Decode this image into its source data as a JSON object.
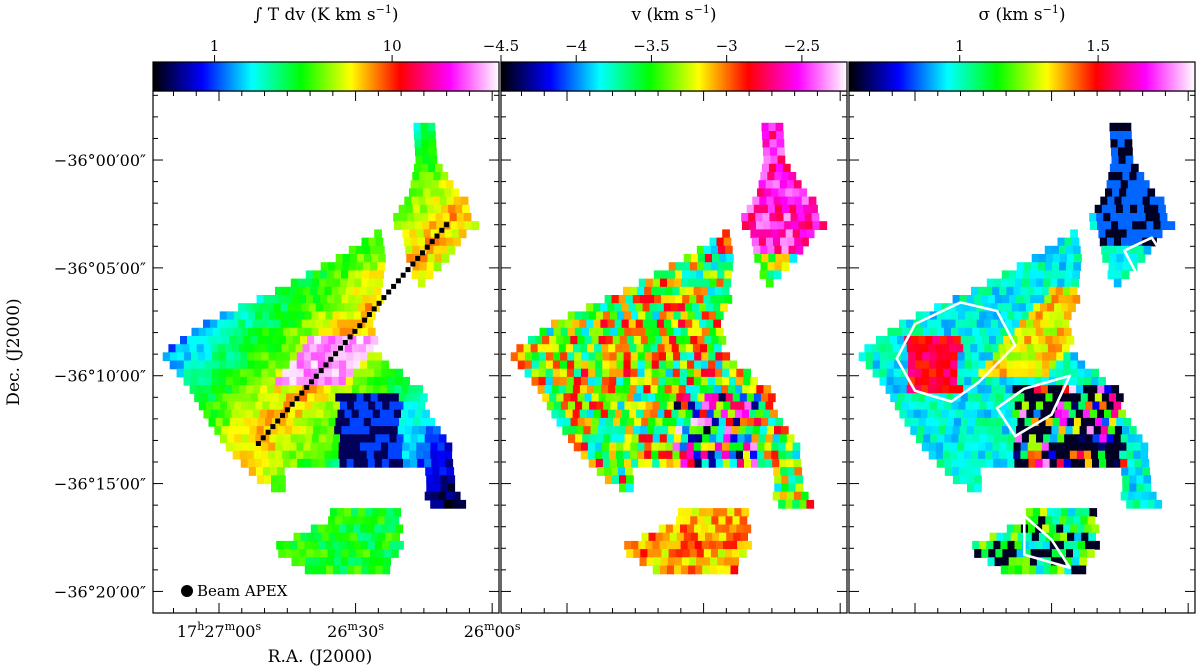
{
  "chart_data": {
    "type": "heatmap",
    "layout": "three side-by-side map panels sharing the Dec. axis",
    "y_axis": {
      "label": "Dec. (J2000)",
      "ticks": [
        {
          "label": "−36°00′00″",
          "value_arcmin": 0
        },
        {
          "label": "−36°05′00″",
          "value_arcmin": -5
        },
        {
          "label": "−36°10′00″",
          "value_arcmin": -10
        },
        {
          "label": "−36°15′00″",
          "value_arcmin": -15
        },
        {
          "label": "−36°20′00″",
          "value_arcmin": -20
        }
      ],
      "range_arcmin": [
        -21.0,
        3.2
      ]
    },
    "x_axis": {
      "label": "R.A. (J2000)",
      "ticks": [
        {
          "h": "17",
          "m": "27",
          "s": "00",
          "value_sec_after_17h26m": 60
        },
        {
          "h": "",
          "m": "26",
          "s": "30",
          "value_sec_after_17h26m": 30
        },
        {
          "h": "",
          "m": "26",
          "s": "00",
          "value_sec_after_17h26m": 0
        }
      ],
      "range_sec_after_17h26m": [
        74.5,
        -1.5
      ]
    },
    "panels": [
      {
        "colorbar": {
          "title": "∫ T dv (K km s",
          "title_unit_exp": "−1",
          "title_close": ")",
          "scale": "log",
          "range": [
            0.45,
            40
          ],
          "ticks": [
            {
              "label": "1",
              "value": 1
            },
            {
              "label": "10",
              "value": 10
            }
          ],
          "colormap": [
            "#000000",
            "#0000ff",
            "#00ffff",
            "#00ff00",
            "#ffff00",
            "#ff0000",
            "#ff00ff",
            "#ffffff"
          ]
        },
        "filament_spine_dec_arcmin": [
          -3.0,
          -13.3
        ],
        "beam_label": "Beam APEX"
      },
      {
        "colorbar": {
          "title": "v (km s",
          "title_unit_exp": "−1",
          "title_close": ")",
          "scale": "linear",
          "range": [
            -4.5,
            -2.2
          ],
          "ticks": [
            {
              "label": "−4.5",
              "value": -4.5
            },
            {
              "label": "−4",
              "value": -4.0
            },
            {
              "label": "−3.5",
              "value": -3.5
            },
            {
              "label": "−3",
              "value": -3.0
            },
            {
              "label": "−2.5",
              "value": -2.5
            }
          ],
          "colormap": [
            "#000000",
            "#0000ff",
            "#00ffff",
            "#00ff00",
            "#ffff00",
            "#ff0000",
            "#ff00ff",
            "#ffffff"
          ]
        }
      },
      {
        "colorbar": {
          "title": "σ (km s",
          "title_unit_exp": "−1",
          "title_close": ")",
          "scale": "linear",
          "range": [
            0.6,
            1.85
          ],
          "ticks": [
            {
              "label": "1",
              "value": 1.0
            },
            {
              "label": "1.5",
              "value": 1.5
            }
          ],
          "colormap": [
            "#000000",
            "#0000ff",
            "#00ffff",
            "#00ff00",
            "#ffff00",
            "#ff0000",
            "#ff00ff",
            "#ffffff"
          ]
        }
      }
    ],
    "map_shape": {
      "description": "filamentary cloud outline in map grid cells (dec rows, RA columns)",
      "rows": [
        {
          "dec": 1.7,
          "ra_from": 16.5,
          "ra_to": 13.0
        },
        {
          "dec": 0.0,
          "ra_from": 16.0,
          "ra_to": 11.5
        },
        {
          "dec": -1.6,
          "ra_from": 17.5,
          "ra_to": 6.5
        },
        {
          "dec": -3.0,
          "ra_from": 22.0,
          "ra_to": 3.5
        },
        {
          "dec": -4.5,
          "ra_from": 33.0,
          "ra_to": 9.0
        },
        {
          "dec": -6.0,
          "ra_from": 46.0,
          "ra_to": 16.0
        },
        {
          "dec": -7.5,
          "ra_from": 62.0,
          "ra_to": 27.0
        },
        {
          "dec": -9.0,
          "ra_from": 72.0,
          "ra_to": 25.0
        },
        {
          "dec": -10.5,
          "ra_from": 66.0,
          "ra_to": 16.0
        },
        {
          "dec": -12.0,
          "ra_from": 62.0,
          "ra_to": 13.0
        },
        {
          "dec": -13.5,
          "ra_from": 57.0,
          "ra_to": 9.0
        },
        {
          "dec": -15.0,
          "ra_from": 50.0,
          "ra_to": 8.0
        },
        {
          "dec": -16.5,
          "ra_from": 33.0,
          "ra_to": 4.0
        },
        {
          "dec": -18.0,
          "ra_from": 48.0,
          "ra_to": 20.0
        },
        {
          "dec": -19.3,
          "ra_from": 38.0,
          "ra_to": 24.0
        }
      ]
    }
  }
}
